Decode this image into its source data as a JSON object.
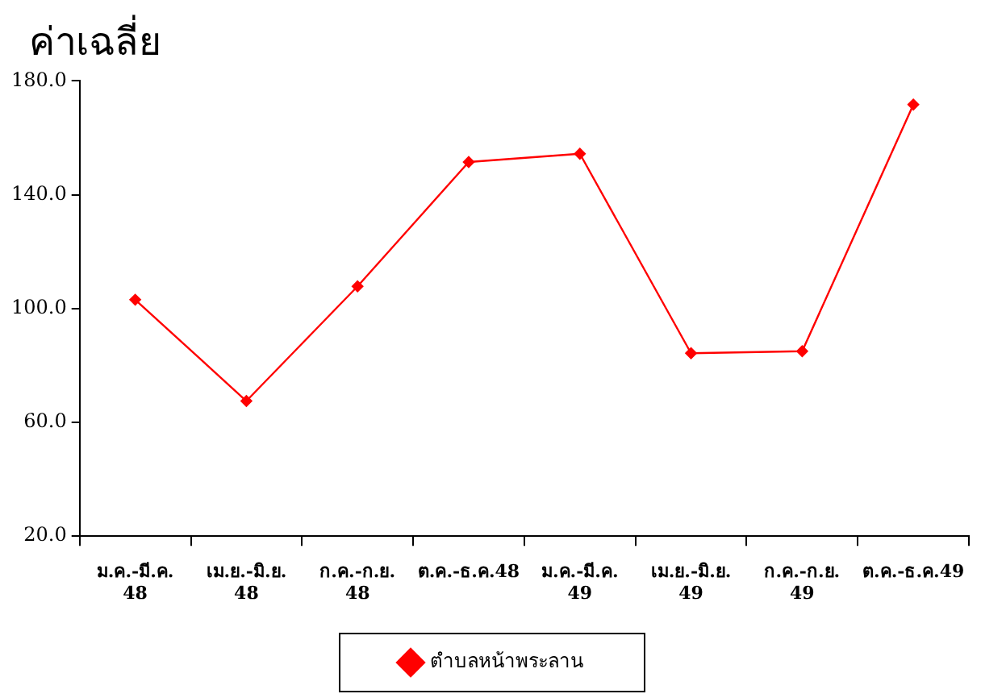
{
  "chart_data": {
    "type": "line",
    "title": "ค่าเฉลี่ย",
    "categories": [
      "ม.ค.-มี.ค.\n48",
      "เม.ย.-มิ.ย.\n48",
      "ก.ค.-ก.ย.\n48",
      "ต.ค.-ธ.ค.48",
      "ม.ค.-มี.ค.\n49",
      "เม.ย.-มิ.ย.\n49",
      "ก.ค.-ก.ย.\n49",
      "ต.ค.-ธ.ค.49"
    ],
    "series": [
      {
        "name": "ตำบลหน้าพระลาน",
        "color": "#ff0000",
        "values": [
          103.1,
          67.5,
          107.8,
          151.5,
          154.4,
          84.3,
          85.0,
          171.7
        ]
      }
    ],
    "ylim": [
      20,
      180
    ],
    "yticks": [
      {
        "value": 20,
        "label": "20.0"
      },
      {
        "value": 60,
        "label": "60.0"
      },
      {
        "value": 100,
        "label": "100.0"
      },
      {
        "value": 140,
        "label": "140.0"
      },
      {
        "value": 180,
        "label": "180.0"
      }
    ],
    "grid": false,
    "legend": "bottom",
    "marker": "diamond",
    "line_style": "solid"
  }
}
